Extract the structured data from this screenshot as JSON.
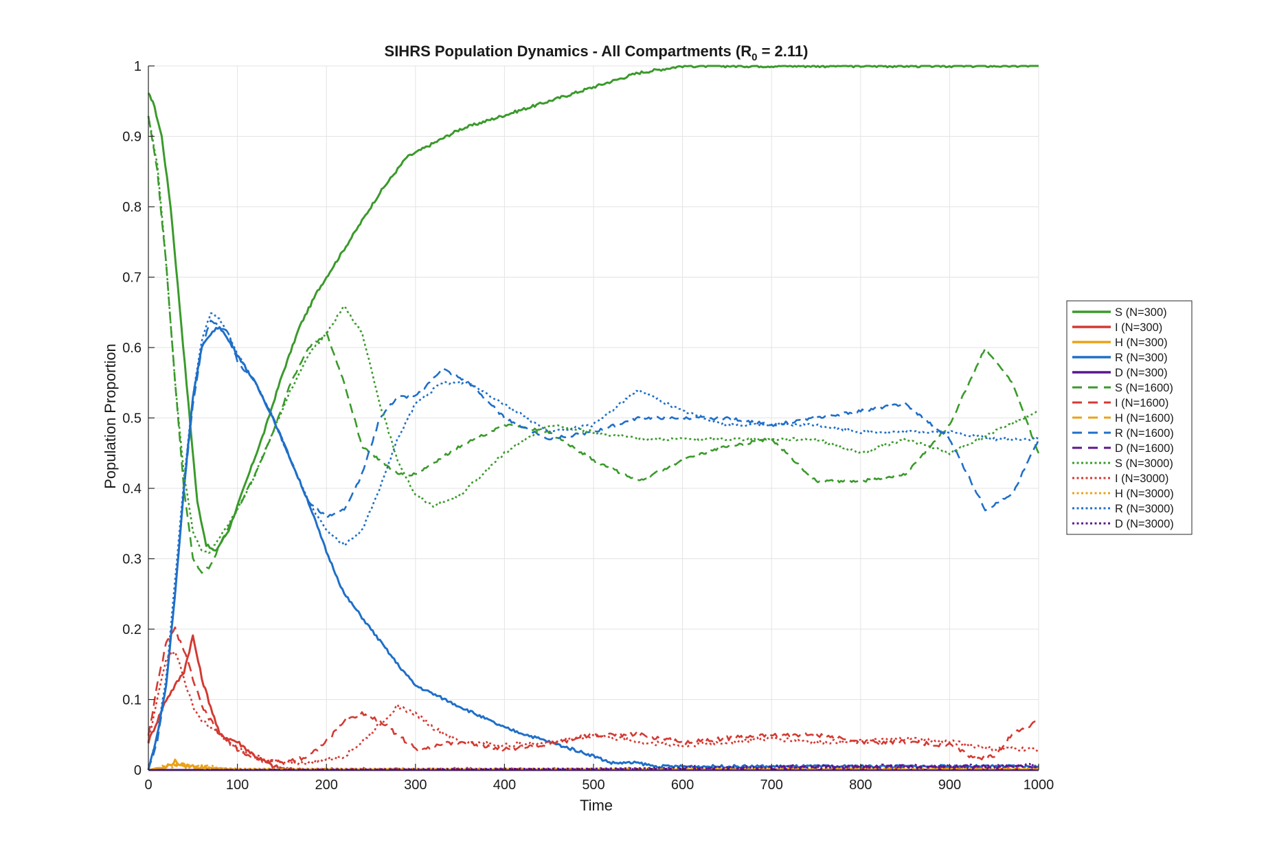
{
  "chart_data": {
    "type": "line",
    "title_main": "SIHRS  Population  Dynamics  -  All  Compartments  (R",
    "title_sub": "0",
    "title_end": "  =  2.11)",
    "xlabel": "Time",
    "ylabel": "Population Proportion",
    "xlim": [
      0,
      1000
    ],
    "ylim": [
      0,
      1
    ],
    "xticks": [
      0,
      100,
      200,
      300,
      400,
      500,
      600,
      700,
      800,
      900,
      1000
    ],
    "yticks": [
      0,
      0.1,
      0.2,
      0.3,
      0.4,
      0.5,
      0.6,
      0.7,
      0.8,
      0.9,
      1
    ],
    "xtick_labels": [
      "0",
      "100",
      "200",
      "300",
      "400",
      "500",
      "600",
      "700",
      "800",
      "900",
      "1000"
    ],
    "ytick_labels": [
      "0",
      "0.1",
      "0.2",
      "0.3",
      "0.4",
      "0.5",
      "0.6",
      "0.7",
      "0.8",
      "0.9",
      "1"
    ],
    "grid": true,
    "legend_position": "right-outside",
    "colors": {
      "S": "#3a9a2b",
      "I": "#d33a32",
      "H": "#eba214",
      "R": "#1f6fc8",
      "D": "#5b168f"
    },
    "series": [
      {
        "name": "S (N=300)",
        "compartment": "S",
        "style": "solid",
        "x": [
          0,
          5,
          15,
          25,
          35,
          45,
          55,
          65,
          75,
          90,
          110,
          130,
          150,
          170,
          190,
          210,
          230,
          260,
          290,
          320,
          350,
          400,
          450,
          500,
          550,
          600,
          650,
          1000
        ],
        "y": [
          0.96,
          0.95,
          0.9,
          0.8,
          0.66,
          0.52,
          0.38,
          0.32,
          0.31,
          0.34,
          0.41,
          0.48,
          0.56,
          0.63,
          0.68,
          0.72,
          0.76,
          0.82,
          0.87,
          0.89,
          0.91,
          0.93,
          0.95,
          0.97,
          0.99,
          1.0,
          1.0,
          1.0
        ]
      },
      {
        "name": "I (N=300)",
        "compartment": "I",
        "style": "solid",
        "x": [
          0,
          10,
          20,
          30,
          40,
          50,
          60,
          70,
          80,
          100,
          120,
          140,
          160,
          1000
        ],
        "y": [
          0.04,
          0.07,
          0.1,
          0.12,
          0.14,
          0.19,
          0.13,
          0.09,
          0.05,
          0.04,
          0.02,
          0.005,
          0,
          0
        ]
      },
      {
        "name": "H (N=300)",
        "compartment": "H",
        "style": "solid",
        "x": [
          0,
          20,
          30,
          40,
          60,
          80,
          100,
          1000
        ],
        "y": [
          0,
          0.004,
          0.012,
          0.006,
          0.004,
          0.002,
          0,
          0
        ]
      },
      {
        "name": "R (N=300)",
        "compartment": "R",
        "style": "solid",
        "x": [
          0,
          10,
          20,
          30,
          40,
          50,
          60,
          70,
          80,
          90,
          100,
          120,
          140,
          160,
          180,
          200,
          220,
          250,
          280,
          300,
          350,
          400,
          450,
          500,
          520,
          550,
          570,
          1000
        ],
        "y": [
          0.0,
          0.05,
          0.12,
          0.25,
          0.4,
          0.53,
          0.6,
          0.62,
          0.63,
          0.61,
          0.59,
          0.55,
          0.5,
          0.44,
          0.38,
          0.31,
          0.25,
          0.2,
          0.15,
          0.12,
          0.09,
          0.06,
          0.04,
          0.02,
          0.01,
          0.01,
          0.005,
          0.005
        ]
      },
      {
        "name": "D (N=300)",
        "compartment": "D",
        "style": "solid",
        "x": [
          0,
          1000
        ],
        "y": [
          0,
          0
        ]
      },
      {
        "name": "S (N=1600)",
        "compartment": "S",
        "style": "dashed",
        "x": [
          0,
          10,
          20,
          30,
          40,
          50,
          60,
          70,
          80,
          100,
          120,
          140,
          160,
          180,
          200,
          220,
          240,
          260,
          280,
          300,
          350,
          400,
          450,
          500,
          550,
          600,
          650,
          700,
          750,
          800,
          850,
          900,
          940,
          970,
          1000
        ],
        "y": [
          0.93,
          0.85,
          0.72,
          0.55,
          0.4,
          0.3,
          0.28,
          0.29,
          0.32,
          0.37,
          0.42,
          0.48,
          0.55,
          0.6,
          0.62,
          0.55,
          0.46,
          0.44,
          0.42,
          0.42,
          0.46,
          0.49,
          0.48,
          0.44,
          0.41,
          0.44,
          0.46,
          0.47,
          0.41,
          0.41,
          0.42,
          0.49,
          0.6,
          0.55,
          0.45
        ]
      },
      {
        "name": "I (N=1600)",
        "compartment": "I",
        "style": "dashed",
        "x": [
          0,
          10,
          20,
          30,
          40,
          50,
          60,
          80,
          100,
          120,
          150,
          180,
          200,
          220,
          240,
          260,
          280,
          300,
          350,
          400,
          450,
          500,
          550,
          600,
          650,
          700,
          750,
          800,
          850,
          900,
          930,
          950,
          970,
          1000
        ],
        "y": [
          0.05,
          0.12,
          0.18,
          0.2,
          0.17,
          0.13,
          0.09,
          0.05,
          0.03,
          0.015,
          0.01,
          0.02,
          0.04,
          0.07,
          0.08,
          0.07,
          0.05,
          0.03,
          0.04,
          0.03,
          0.035,
          0.05,
          0.05,
          0.04,
          0.045,
          0.05,
          0.05,
          0.04,
          0.04,
          0.035,
          0.015,
          0.02,
          0.05,
          0.07
        ]
      },
      {
        "name": "H (N=1600)",
        "compartment": "H",
        "style": "dashed",
        "x": [
          0,
          20,
          40,
          60,
          100,
          1000
        ],
        "y": [
          0,
          0.006,
          0.008,
          0.004,
          0.001,
          0.001
        ]
      },
      {
        "name": "R (N=1600)",
        "compartment": "R",
        "style": "dashed",
        "x": [
          0,
          10,
          20,
          30,
          40,
          50,
          60,
          70,
          80,
          90,
          100,
          120,
          140,
          160,
          180,
          200,
          220,
          240,
          260,
          280,
          300,
          330,
          360,
          400,
          450,
          500,
          550,
          600,
          650,
          700,
          750,
          800,
          850,
          900,
          940,
          970,
          1000
        ],
        "y": [
          0.0,
          0.04,
          0.12,
          0.25,
          0.4,
          0.52,
          0.6,
          0.64,
          0.63,
          0.62,
          0.58,
          0.55,
          0.5,
          0.44,
          0.38,
          0.36,
          0.37,
          0.42,
          0.5,
          0.53,
          0.53,
          0.57,
          0.55,
          0.5,
          0.47,
          0.48,
          0.5,
          0.5,
          0.5,
          0.49,
          0.5,
          0.51,
          0.52,
          0.47,
          0.37,
          0.39,
          0.47
        ]
      },
      {
        "name": "D (N=1600)",
        "compartment": "D",
        "style": "dashed",
        "x": [
          0,
          500,
          600,
          700,
          800,
          900,
          1000
        ],
        "y": [
          0,
          0.001,
          0.002,
          0.003,
          0.004,
          0.004,
          0.004
        ]
      },
      {
        "name": "S (N=3000)",
        "compartment": "S",
        "style": "dotted",
        "x": [
          0,
          10,
          20,
          30,
          40,
          50,
          60,
          70,
          80,
          100,
          120,
          140,
          160,
          180,
          200,
          220,
          240,
          260,
          280,
          300,
          320,
          350,
          400,
          450,
          500,
          550,
          600,
          650,
          700,
          750,
          800,
          850,
          900,
          950,
          1000
        ],
        "y": [
          0.93,
          0.86,
          0.72,
          0.55,
          0.42,
          0.34,
          0.31,
          0.31,
          0.33,
          0.37,
          0.42,
          0.48,
          0.54,
          0.59,
          0.62,
          0.66,
          0.62,
          0.52,
          0.44,
          0.39,
          0.375,
          0.39,
          0.45,
          0.49,
          0.48,
          0.47,
          0.47,
          0.47,
          0.47,
          0.47,
          0.45,
          0.47,
          0.45,
          0.48,
          0.51
        ]
      },
      {
        "name": "I (N=3000)",
        "compartment": "I",
        "style": "dotted",
        "x": [
          0,
          10,
          20,
          30,
          40,
          50,
          60,
          80,
          100,
          120,
          150,
          180,
          200,
          220,
          240,
          260,
          280,
          300,
          320,
          350,
          400,
          450,
          500,
          550,
          600,
          650,
          700,
          750,
          800,
          850,
          900,
          950,
          1000
        ],
        "y": [
          0.04,
          0.1,
          0.16,
          0.17,
          0.13,
          0.09,
          0.07,
          0.05,
          0.03,
          0.02,
          0.01,
          0.01,
          0.015,
          0.02,
          0.04,
          0.065,
          0.09,
          0.08,
          0.06,
          0.04,
          0.035,
          0.04,
          0.05,
          0.04,
          0.035,
          0.04,
          0.045,
          0.04,
          0.04,
          0.045,
          0.04,
          0.03,
          0.03
        ]
      },
      {
        "name": "H (N=3000)",
        "compartment": "H",
        "style": "dotted",
        "x": [
          0,
          20,
          40,
          60,
          100,
          1000
        ],
        "y": [
          0,
          0.005,
          0.006,
          0.004,
          0.002,
          0.002
        ]
      },
      {
        "name": "R (N=3000)",
        "compartment": "R",
        "style": "dotted",
        "x": [
          0,
          10,
          20,
          30,
          40,
          50,
          60,
          70,
          80,
          90,
          100,
          120,
          140,
          160,
          180,
          200,
          220,
          240,
          260,
          280,
          300,
          330,
          360,
          400,
          450,
          500,
          550,
          600,
          650,
          700,
          750,
          800,
          850,
          900,
          950,
          1000
        ],
        "y": [
          0.0,
          0.05,
          0.13,
          0.27,
          0.41,
          0.53,
          0.61,
          0.65,
          0.64,
          0.62,
          0.59,
          0.55,
          0.5,
          0.44,
          0.38,
          0.34,
          0.32,
          0.34,
          0.4,
          0.47,
          0.52,
          0.55,
          0.55,
          0.52,
          0.48,
          0.49,
          0.54,
          0.51,
          0.49,
          0.49,
          0.49,
          0.48,
          0.48,
          0.48,
          0.47,
          0.47
        ]
      },
      {
        "name": "D (N=3000)",
        "compartment": "D",
        "style": "dotted",
        "x": [
          0,
          500,
          600,
          700,
          800,
          900,
          1000
        ],
        "y": [
          0,
          0.002,
          0.003,
          0.004,
          0.005,
          0.005,
          0.006
        ]
      }
    ]
  }
}
